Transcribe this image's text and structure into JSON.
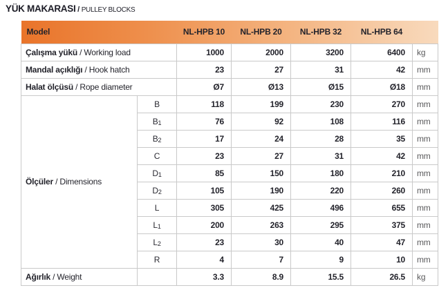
{
  "page": {
    "title_tr": "YÜK MAKARASI",
    "title_sep": " / ",
    "title_en": "PULLEY BLOCKS"
  },
  "colors": {
    "header_gradient_left": "#e9742a",
    "header_gradient_right": "#f8dabd",
    "border": "#c9c9c9",
    "text_dark": "#23232b",
    "unit_gray": "#5a5a5c"
  },
  "table": {
    "model_label": "Model",
    "columns": [
      "NL-HPB 10",
      "NL-HPB 20",
      "NL-HPB 32",
      "NL-HPB 64"
    ],
    "sep": " / ",
    "group_label": {
      "tr": "Ölçüler",
      "en": "Dimensions"
    },
    "rows": [
      {
        "kind": "simple",
        "label": {
          "tr": "Çalışma yükü",
          "en": "Working load"
        },
        "values": [
          "1000",
          "2000",
          "3200",
          "6400"
        ],
        "unit": "kg"
      },
      {
        "kind": "simple",
        "label": {
          "tr": "Mandal açıklığı",
          "en": "Hook hatch"
        },
        "values": [
          "23",
          "27",
          "31",
          "42"
        ],
        "unit": "mm"
      },
      {
        "kind": "simple",
        "label": {
          "tr": "Halat ölçüsü",
          "en": "Rope diameter"
        },
        "values": [
          "Ø7",
          "Ø13",
          "Ø15",
          "Ø18"
        ],
        "unit": "mm"
      },
      {
        "kind": "dim",
        "sub_base": "B",
        "sub_index": "",
        "values": [
          "118",
          "199",
          "230",
          "270"
        ],
        "unit": "mm"
      },
      {
        "kind": "dim",
        "sub_base": "B",
        "sub_index": "1",
        "values": [
          "76",
          "92",
          "108",
          "116"
        ],
        "unit": "mm"
      },
      {
        "kind": "dim",
        "sub_base": "B",
        "sub_index": "2",
        "values": [
          "17",
          "24",
          "28",
          "35"
        ],
        "unit": "mm"
      },
      {
        "kind": "dim",
        "sub_base": "C",
        "sub_index": "",
        "values": [
          "23",
          "27",
          "31",
          "42"
        ],
        "unit": "mm"
      },
      {
        "kind": "dim",
        "sub_base": "D",
        "sub_index": "1",
        "values": [
          "85",
          "150",
          "180",
          "210"
        ],
        "unit": "mm"
      },
      {
        "kind": "dim",
        "sub_base": "D",
        "sub_index": "2",
        "values": [
          "105",
          "190",
          "220",
          "260"
        ],
        "unit": "mm"
      },
      {
        "kind": "dim",
        "sub_base": "L",
        "sub_index": "",
        "values": [
          "305",
          "425",
          "496",
          "655"
        ],
        "unit": "mm"
      },
      {
        "kind": "dim",
        "sub_base": "L",
        "sub_index": "1",
        "values": [
          "200",
          "263",
          "295",
          "375"
        ],
        "unit": "mm"
      },
      {
        "kind": "dim",
        "sub_base": "L",
        "sub_index": "2",
        "values": [
          "23",
          "30",
          "40",
          "47"
        ],
        "unit": "mm"
      },
      {
        "kind": "dim",
        "sub_base": "R",
        "sub_index": "",
        "values": [
          "4",
          "7",
          "9",
          "10"
        ],
        "unit": "mm"
      },
      {
        "kind": "weight",
        "label": {
          "tr": "Ağırlık",
          "en": "Weight"
        },
        "values": [
          "3.3",
          "8.9",
          "15.5",
          "26.5"
        ],
        "unit": "kg"
      }
    ]
  }
}
